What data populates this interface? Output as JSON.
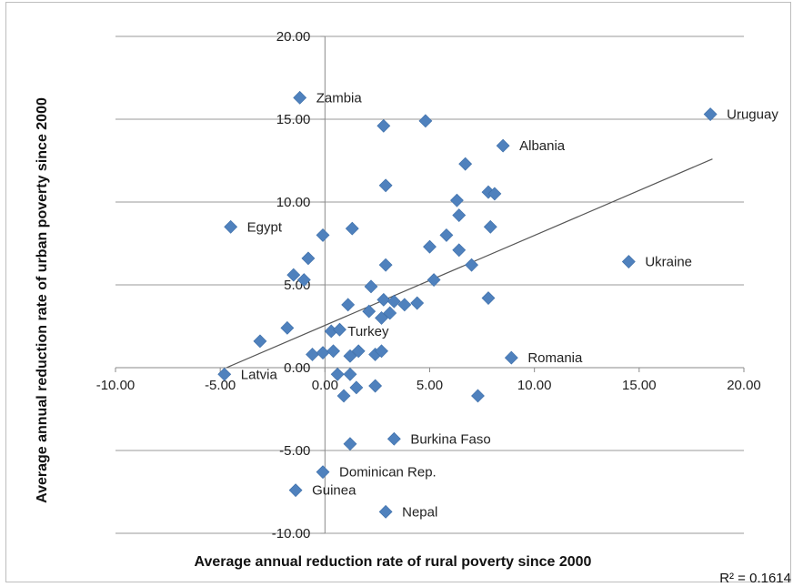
{
  "chart_data": {
    "type": "scatter",
    "xlabel": "Average annual reduction rate of rural poverty since 2000",
    "ylabel": "Average annual reduction rate of urban poverty since 2000",
    "xlim": [
      -10,
      20
    ],
    "ylim": [
      -10,
      20
    ],
    "x_ticks": [
      "-10.00",
      "-5.00",
      "0.00",
      "5.00",
      "10.00",
      "15.00",
      "20.00"
    ],
    "y_ticks": [
      "-10.00",
      "-5.00",
      "0.00",
      "5.00",
      "10.00",
      "15.00",
      "20.00"
    ],
    "grid": "horizontal",
    "marker": "diamond",
    "marker_color": "#4f81bd",
    "trendline": {
      "type": "linear",
      "from": [
        -4.7,
        0.0
      ],
      "to": [
        18.5,
        12.6
      ],
      "color": "#555555"
    },
    "r_squared_label": "R² = 0.1614",
    "points": [
      {
        "x": 18.4,
        "y": 15.3,
        "label": "Uruguay"
      },
      {
        "x": -1.2,
        "y": 16.3,
        "label": "Zambia"
      },
      {
        "x": 8.5,
        "y": 13.4,
        "label": "Albania"
      },
      {
        "x": 14.5,
        "y": 6.4,
        "label": "Ukraine"
      },
      {
        "x": -4.5,
        "y": 8.5,
        "label": "Egypt"
      },
      {
        "x": 0.3,
        "y": 2.2,
        "label": "Turkey"
      },
      {
        "x": -4.8,
        "y": -0.4,
        "label": "Latvia"
      },
      {
        "x": 8.9,
        "y": 0.6,
        "label": "Romania"
      },
      {
        "x": 3.3,
        "y": -4.3,
        "label": "Burkina Faso"
      },
      {
        "x": -0.1,
        "y": -6.3,
        "label": "Dominican Rep."
      },
      {
        "x": -1.4,
        "y": -7.4,
        "label": "Guinea"
      },
      {
        "x": 2.9,
        "y": -8.7,
        "label": "Nepal"
      },
      {
        "x": 2.8,
        "y": 14.6,
        "label": ""
      },
      {
        "x": 4.8,
        "y": 14.9,
        "label": ""
      },
      {
        "x": 6.7,
        "y": 12.3,
        "label": ""
      },
      {
        "x": 2.9,
        "y": 11.0,
        "label": ""
      },
      {
        "x": 6.3,
        "y": 10.1,
        "label": ""
      },
      {
        "x": 7.8,
        "y": 10.6,
        "label": ""
      },
      {
        "x": 8.1,
        "y": 10.5,
        "label": ""
      },
      {
        "x": 6.4,
        "y": 9.2,
        "label": ""
      },
      {
        "x": 1.3,
        "y": 8.4,
        "label": ""
      },
      {
        "x": 7.9,
        "y": 8.5,
        "label": ""
      },
      {
        "x": -0.1,
        "y": 8.0,
        "label": ""
      },
      {
        "x": 5.8,
        "y": 8.0,
        "label": ""
      },
      {
        "x": 5.0,
        "y": 7.3,
        "label": ""
      },
      {
        "x": 6.4,
        "y": 7.1,
        "label": ""
      },
      {
        "x": -0.8,
        "y": 6.6,
        "label": ""
      },
      {
        "x": 2.9,
        "y": 6.2,
        "label": ""
      },
      {
        "x": 7.0,
        "y": 6.2,
        "label": ""
      },
      {
        "x": -1.5,
        "y": 5.6,
        "label": ""
      },
      {
        "x": -1.0,
        "y": 5.3,
        "label": ""
      },
      {
        "x": 5.2,
        "y": 5.3,
        "label": ""
      },
      {
        "x": 2.2,
        "y": 4.9,
        "label": ""
      },
      {
        "x": 7.8,
        "y": 4.2,
        "label": ""
      },
      {
        "x": 2.8,
        "y": 4.1,
        "label": ""
      },
      {
        "x": 3.3,
        "y": 4.0,
        "label": ""
      },
      {
        "x": 3.8,
        "y": 3.8,
        "label": ""
      },
      {
        "x": 4.4,
        "y": 3.9,
        "label": ""
      },
      {
        "x": 1.1,
        "y": 3.8,
        "label": ""
      },
      {
        "x": 2.1,
        "y": 3.4,
        "label": ""
      },
      {
        "x": 3.1,
        "y": 3.3,
        "label": ""
      },
      {
        "x": 2.7,
        "y": 3.0,
        "label": ""
      },
      {
        "x": -1.8,
        "y": 2.4,
        "label": ""
      },
      {
        "x": 0.7,
        "y": 2.3,
        "label": ""
      },
      {
        "x": -3.1,
        "y": 1.6,
        "label": ""
      },
      {
        "x": -0.6,
        "y": 0.8,
        "label": ""
      },
      {
        "x": -0.1,
        "y": 0.9,
        "label": ""
      },
      {
        "x": 0.4,
        "y": 1.0,
        "label": ""
      },
      {
        "x": 1.2,
        "y": 0.7,
        "label": ""
      },
      {
        "x": 1.6,
        "y": 1.0,
        "label": ""
      },
      {
        "x": 2.4,
        "y": 0.8,
        "label": ""
      },
      {
        "x": 2.7,
        "y": 1.0,
        "label": ""
      },
      {
        "x": 0.6,
        "y": -0.4,
        "label": ""
      },
      {
        "x": 1.2,
        "y": -0.4,
        "label": ""
      },
      {
        "x": 1.5,
        "y": -1.2,
        "label": ""
      },
      {
        "x": 2.4,
        "y": -1.1,
        "label": ""
      },
      {
        "x": 0.9,
        "y": -1.7,
        "label": ""
      },
      {
        "x": 7.3,
        "y": -1.7,
        "label": ""
      },
      {
        "x": 1.2,
        "y": -4.6,
        "label": ""
      }
    ]
  }
}
